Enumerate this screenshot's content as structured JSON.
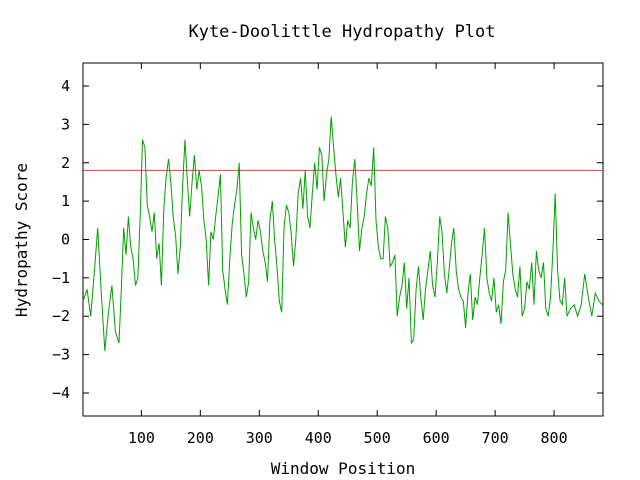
{
  "chart_data": {
    "type": "line",
    "title": "Kyte-Doolittle Hydropathy Plot",
    "xlabel": "Window Position",
    "ylabel": "Hydropathy Score",
    "xlim": [
      1,
      883
    ],
    "ylim": [
      -4.6,
      4.6
    ],
    "xticks": [
      100,
      200,
      300,
      400,
      500,
      600,
      700,
      800
    ],
    "yticks": [
      4,
      3,
      2,
      1,
      0,
      -1,
      -2,
      -3,
      -4
    ],
    "threshold": {
      "value": 1.8,
      "color": "#e04040"
    },
    "series": [
      {
        "color": "#00a000",
        "points": [
          [
            1,
            -1.6
          ],
          [
            8,
            -1.3
          ],
          [
            14,
            -2.0
          ],
          [
            20,
            -0.9
          ],
          [
            26,
            0.3
          ],
          [
            32,
            -1.4
          ],
          [
            38,
            -2.9
          ],
          [
            44,
            -1.9
          ],
          [
            50,
            -1.2
          ],
          [
            56,
            -2.4
          ],
          [
            62,
            -2.7
          ],
          [
            66,
            -1.3
          ],
          [
            70,
            0.3
          ],
          [
            74,
            -0.4
          ],
          [
            78,
            0.6
          ],
          [
            82,
            -0.2
          ],
          [
            86,
            -0.5
          ],
          [
            90,
            -1.2
          ],
          [
            94,
            -1.0
          ],
          [
            98,
            0.6
          ],
          [
            102,
            2.6
          ],
          [
            106,
            2.4
          ],
          [
            110,
            0.9
          ],
          [
            114,
            0.6
          ],
          [
            118,
            0.2
          ],
          [
            122,
            0.7
          ],
          [
            126,
            -0.5
          ],
          [
            130,
            -0.1
          ],
          [
            134,
            -1.2
          ],
          [
            138,
            0.8
          ],
          [
            142,
            1.6
          ],
          [
            146,
            2.1
          ],
          [
            150,
            1.5
          ],
          [
            154,
            0.6
          ],
          [
            158,
            0.1
          ],
          [
            162,
            -0.9
          ],
          [
            166,
            -0.2
          ],
          [
            170,
            1.4
          ],
          [
            174,
            2.6
          ],
          [
            178,
            1.5
          ],
          [
            182,
            0.6
          ],
          [
            186,
            1.5
          ],
          [
            190,
            2.2
          ],
          [
            194,
            1.3
          ],
          [
            198,
            1.8
          ],
          [
            202,
            1.4
          ],
          [
            206,
            0.5
          ],
          [
            210,
            0.0
          ],
          [
            214,
            -1.2
          ],
          [
            218,
            0.2
          ],
          [
            222,
            0.0
          ],
          [
            226,
            0.6
          ],
          [
            230,
            1.1
          ],
          [
            234,
            1.7
          ],
          [
            238,
            -0.8
          ],
          [
            242,
            -1.3
          ],
          [
            246,
            -1.7
          ],
          [
            250,
            -0.5
          ],
          [
            254,
            0.4
          ],
          [
            258,
            0.9
          ],
          [
            262,
            1.3
          ],
          [
            266,
            2.0
          ],
          [
            270,
            -0.4
          ],
          [
            274,
            -0.9
          ],
          [
            278,
            -1.5
          ],
          [
            282,
            -1.1
          ],
          [
            286,
            0.7
          ],
          [
            290,
            0.3
          ],
          [
            294,
            0.0
          ],
          [
            298,
            0.5
          ],
          [
            302,
            0.2
          ],
          [
            306,
            -0.3
          ],
          [
            310,
            -0.6
          ],
          [
            314,
            -1.1
          ],
          [
            318,
            0.5
          ],
          [
            322,
            1.0
          ],
          [
            326,
            0.0
          ],
          [
            330,
            -0.7
          ],
          [
            334,
            -1.6
          ],
          [
            338,
            -1.9
          ],
          [
            342,
            0.3
          ],
          [
            346,
            0.9
          ],
          [
            350,
            0.7
          ],
          [
            354,
            0.2
          ],
          [
            358,
            -0.7
          ],
          [
            362,
            0.0
          ],
          [
            366,
            1.2
          ],
          [
            370,
            1.6
          ],
          [
            374,
            0.8
          ],
          [
            378,
            1.8
          ],
          [
            382,
            0.6
          ],
          [
            386,
            0.3
          ],
          [
            390,
            1.2
          ],
          [
            394,
            2.0
          ],
          [
            398,
            1.3
          ],
          [
            402,
            2.4
          ],
          [
            406,
            2.2
          ],
          [
            410,
            1.0
          ],
          [
            414,
            1.7
          ],
          [
            418,
            2.1
          ],
          [
            422,
            3.2
          ],
          [
            426,
            2.4
          ],
          [
            430,
            1.7
          ],
          [
            434,
            1.1
          ],
          [
            438,
            1.6
          ],
          [
            442,
            0.7
          ],
          [
            446,
            -0.2
          ],
          [
            450,
            0.5
          ],
          [
            454,
            0.3
          ],
          [
            458,
            1.5
          ],
          [
            462,
            2.1
          ],
          [
            466,
            1.0
          ],
          [
            470,
            -0.3
          ],
          [
            474,
            0.3
          ],
          [
            478,
            0.6
          ],
          [
            482,
            1.2
          ],
          [
            486,
            1.6
          ],
          [
            490,
            1.4
          ],
          [
            494,
            2.4
          ],
          [
            498,
            0.5
          ],
          [
            502,
            -0.2
          ],
          [
            506,
            -0.5
          ],
          [
            510,
            -0.5
          ],
          [
            514,
            0.6
          ],
          [
            518,
            0.3
          ],
          [
            522,
            -0.7
          ],
          [
            526,
            -0.6
          ],
          [
            530,
            -0.4
          ],
          [
            534,
            -2.0
          ],
          [
            538,
            -1.5
          ],
          [
            542,
            -1.2
          ],
          [
            546,
            -0.6
          ],
          [
            550,
            -1.8
          ],
          [
            554,
            -1.0
          ],
          [
            558,
            -2.7
          ],
          [
            562,
            -2.6
          ],
          [
            566,
            -1.3
          ],
          [
            570,
            -0.7
          ],
          [
            574,
            -1.5
          ],
          [
            578,
            -2.1
          ],
          [
            582,
            -1.3
          ],
          [
            586,
            -0.8
          ],
          [
            590,
            -0.3
          ],
          [
            594,
            -1.2
          ],
          [
            598,
            -1.5
          ],
          [
            602,
            -0.6
          ],
          [
            606,
            0.6
          ],
          [
            610,
            0.2
          ],
          [
            614,
            -0.9
          ],
          [
            618,
            -1.4
          ],
          [
            622,
            -0.8
          ],
          [
            626,
            -0.1
          ],
          [
            630,
            0.3
          ],
          [
            634,
            -0.8
          ],
          [
            638,
            -1.3
          ],
          [
            642,
            -1.5
          ],
          [
            646,
            -1.6
          ],
          [
            650,
            -2.3
          ],
          [
            654,
            -1.4
          ],
          [
            658,
            -0.9
          ],
          [
            662,
            -2.1
          ],
          [
            666,
            -1.5
          ],
          [
            670,
            -1.7
          ],
          [
            674,
            -1.0
          ],
          [
            678,
            -0.4
          ],
          [
            682,
            0.3
          ],
          [
            686,
            -1.0
          ],
          [
            690,
            -1.4
          ],
          [
            694,
            -1.6
          ],
          [
            698,
            -1.0
          ],
          [
            702,
            -1.9
          ],
          [
            706,
            -1.7
          ],
          [
            710,
            -2.2
          ],
          [
            714,
            -1.1
          ],
          [
            718,
            -0.8
          ],
          [
            722,
            0.7
          ],
          [
            726,
            -0.1
          ],
          [
            730,
            -0.9
          ],
          [
            734,
            -1.3
          ],
          [
            738,
            -1.5
          ],
          [
            742,
            -0.7
          ],
          [
            746,
            -2.0
          ],
          [
            750,
            -1.8
          ],
          [
            754,
            -1.1
          ],
          [
            758,
            -1.3
          ],
          [
            762,
            -0.6
          ],
          [
            766,
            -1.7
          ],
          [
            770,
            -0.3
          ],
          [
            774,
            -0.8
          ],
          [
            778,
            -1.0
          ],
          [
            782,
            -0.6
          ],
          [
            786,
            -1.8
          ],
          [
            790,
            -2.0
          ],
          [
            794,
            -1.5
          ],
          [
            798,
            -0.3
          ],
          [
            802,
            1.2
          ],
          [
            806,
            -0.8
          ],
          [
            810,
            -1.6
          ],
          [
            814,
            -1.7
          ],
          [
            818,
            -1.0
          ],
          [
            822,
            -2.0
          ],
          [
            828,
            -1.8
          ],
          [
            834,
            -1.7
          ],
          [
            840,
            -2.0
          ],
          [
            846,
            -1.7
          ],
          [
            852,
            -0.9
          ],
          [
            858,
            -1.5
          ],
          [
            864,
            -2.0
          ],
          [
            870,
            -1.4
          ],
          [
            876,
            -1.6
          ],
          [
            882,
            -1.7
          ]
        ]
      }
    ],
    "grid": false,
    "legend": "none"
  }
}
